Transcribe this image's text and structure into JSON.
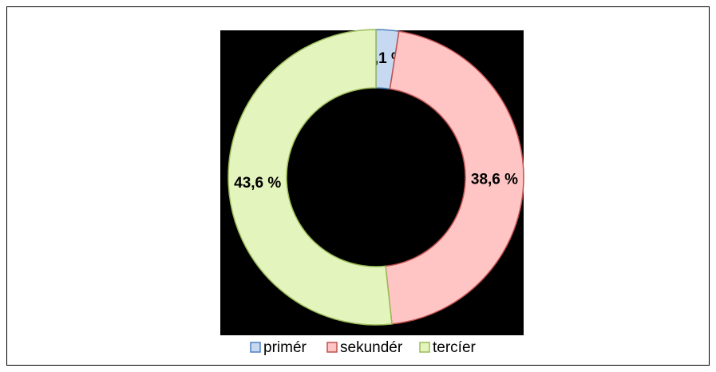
{
  "chart_data": {
    "type": "donut",
    "categories": [
      "primér",
      "sekundér",
      "tercíer"
    ],
    "values": [
      2.1,
      38.6,
      43.6
    ],
    "value_labels": [
      "2,1 %",
      "38,6 %",
      "43,6 %"
    ],
    "colors": [
      "#c6d9f1",
      "#ffc4c4",
      "#e4f4bd"
    ],
    "edge_colors": [
      "#4f81bd",
      "#c0504d",
      "#9bbb59"
    ],
    "legend": "bottom"
  }
}
